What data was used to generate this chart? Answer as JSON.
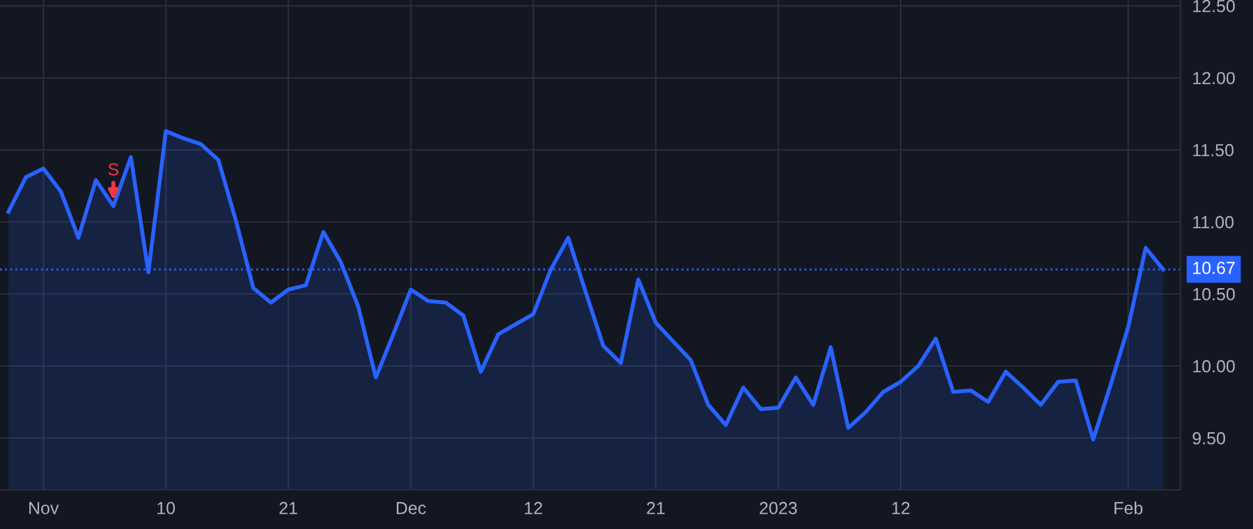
{
  "chart_data": {
    "type": "area",
    "categories": [
      null,
      null,
      "Nov",
      null,
      null,
      null,
      null,
      null,
      null,
      "10",
      null,
      null,
      null,
      null,
      null,
      null,
      "21",
      null,
      null,
      null,
      null,
      null,
      null,
      "Dec",
      null,
      null,
      null,
      null,
      null,
      null,
      "12",
      null,
      null,
      null,
      null,
      null,
      null,
      "21",
      null,
      null,
      null,
      null,
      null,
      null,
      "2023",
      null,
      null,
      null,
      null,
      null,
      null,
      "12",
      null,
      null,
      null,
      null,
      null,
      null,
      null,
      null,
      null,
      null,
      null,
      null,
      "Feb",
      null,
      null
    ],
    "series": [
      {
        "color": "#2962ff",
        "values": [
          11.07,
          11.31,
          11.37,
          11.21,
          10.89,
          11.29,
          11.11,
          11.45,
          10.65,
          11.63,
          11.58,
          11.54,
          11.43,
          11.01,
          10.54,
          10.44,
          10.53,
          10.56,
          10.93,
          10.72,
          10.41,
          9.92,
          10.22,
          10.53,
          10.45,
          10.44,
          10.35,
          9.96,
          10.22,
          10.29,
          10.36,
          10.67,
          10.89,
          10.51,
          10.14,
          10.02,
          10.6,
          10.3,
          10.17,
          10.04,
          9.73,
          9.59,
          9.85,
          9.7,
          9.71,
          9.92,
          9.73,
          10.13,
          9.57,
          9.68,
          9.82,
          9.89,
          10.0,
          10.19,
          9.82,
          9.83,
          9.75,
          9.96,
          9.85,
          9.73,
          9.89,
          9.9,
          9.49,
          9.87,
          10.27,
          10.82,
          10.67
        ]
      }
    ],
    "ylim": [
      9.14,
      12.54
    ],
    "yticks": [
      {
        "value": 9.5,
        "label": "9.50"
      },
      {
        "value": 10,
        "label": "10.00"
      },
      {
        "value": 10.5,
        "label": "10.50"
      },
      {
        "value": 11,
        "label": "11.00"
      },
      {
        "value": 11.5,
        "label": "11.50"
      },
      {
        "value": 12,
        "label": "12.00"
      },
      {
        "value": 12.5,
        "label": "12.50"
      }
    ],
    "ref_lines": [
      {
        "axis": "y",
        "value": 10.67,
        "label": "10.67",
        "color": "#2962ff",
        "line_style": "dotted"
      }
    ],
    "annotations": [
      {
        "text": "S",
        "y": 11.11
      }
    ],
    "grid": true,
    "legend": false
  }
}
